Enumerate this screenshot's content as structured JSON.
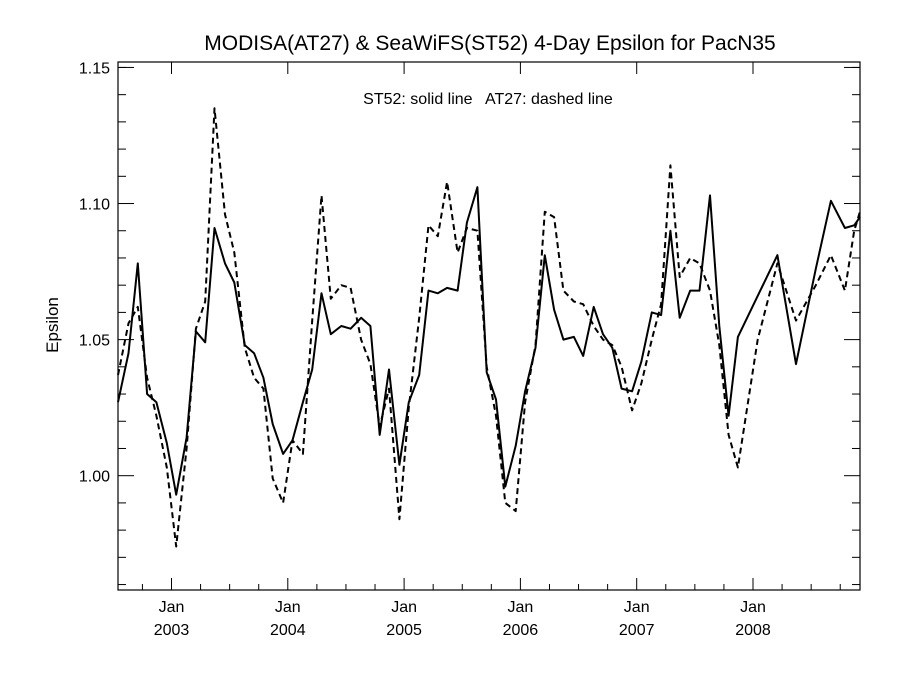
{
  "chart_data": {
    "type": "line",
    "title": "MODISA(AT27) & SeaWiFS(ST52) 4-Day Epsilon for PacN35",
    "ylabel": "Epsilon",
    "xlabel": "",
    "annotation": "ST52: solid line   AT27: dashed line",
    "ylim": [
      0.958,
      1.152
    ],
    "xlim": [
      2002.54,
      2008.92
    ],
    "y_ticks": [
      1.0,
      1.05,
      1.1,
      1.15
    ],
    "y_tick_labels": [
      "1.00",
      "1.05",
      "1.10",
      "1.15"
    ],
    "x_ticks": [
      {
        "x": 2003.0,
        "month": "Jan",
        "year": "2003"
      },
      {
        "x": 2004.0,
        "month": "Jan",
        "year": "2004"
      },
      {
        "x": 2005.0,
        "month": "Jan",
        "year": "2005"
      },
      {
        "x": 2006.0,
        "month": "Jan",
        "year": "2006"
      },
      {
        "x": 2007.0,
        "month": "Jan",
        "year": "2007"
      },
      {
        "x": 2008.0,
        "month": "Jan",
        "year": "2008"
      }
    ],
    "grid": false,
    "series": [
      {
        "name": "ST52",
        "style": "solid",
        "color": "#000000",
        "points": [
          [
            2002.54,
            1.027
          ],
          [
            2002.63,
            1.045
          ],
          [
            2002.71,
            1.078
          ],
          [
            2002.79,
            1.03
          ],
          [
            2002.87,
            1.027
          ],
          [
            2002.96,
            1.012
          ],
          [
            2003.04,
            0.993
          ],
          [
            2003.13,
            1.014
          ],
          [
            2003.21,
            1.053
          ],
          [
            2003.29,
            1.049
          ],
          [
            2003.37,
            1.091
          ],
          [
            2003.46,
            1.078
          ],
          [
            2003.54,
            1.071
          ],
          [
            2003.63,
            1.048
          ],
          [
            2003.71,
            1.045
          ],
          [
            2003.79,
            1.036
          ],
          [
            2003.87,
            1.019
          ],
          [
            2003.96,
            1.008
          ],
          [
            2004.04,
            1.013
          ],
          [
            2004.13,
            1.027
          ],
          [
            2004.21,
            1.039
          ],
          [
            2004.29,
            1.067
          ],
          [
            2004.37,
            1.052
          ],
          [
            2004.46,
            1.055
          ],
          [
            2004.54,
            1.054
          ],
          [
            2004.63,
            1.058
          ],
          [
            2004.71,
            1.055
          ],
          [
            2004.79,
            1.015
          ],
          [
            2004.87,
            1.039
          ],
          [
            2004.96,
            1.004
          ],
          [
            2005.04,
            1.027
          ],
          [
            2005.13,
            1.037
          ],
          [
            2005.21,
            1.068
          ],
          [
            2005.29,
            1.067
          ],
          [
            2005.37,
            1.069
          ],
          [
            2005.46,
            1.068
          ],
          [
            2005.54,
            1.093
          ],
          [
            2005.63,
            1.106
          ],
          [
            2005.71,
            1.038
          ],
          [
            2005.79,
            1.028
          ],
          [
            2005.87,
            0.996
          ],
          [
            2005.96,
            1.011
          ],
          [
            2006.04,
            1.031
          ],
          [
            2006.13,
            1.047
          ],
          [
            2006.21,
            1.081
          ],
          [
            2006.29,
            1.061
          ],
          [
            2006.37,
            1.05
          ],
          [
            2006.46,
            1.051
          ],
          [
            2006.54,
            1.044
          ],
          [
            2006.63,
            1.062
          ],
          [
            2006.71,
            1.052
          ],
          [
            2006.79,
            1.047
          ],
          [
            2006.87,
            1.032
          ],
          [
            2006.96,
            1.031
          ],
          [
            2007.04,
            1.042
          ],
          [
            2007.13,
            1.06
          ],
          [
            2007.21,
            1.059
          ],
          [
            2007.29,
            1.09
          ],
          [
            2007.37,
            1.058
          ],
          [
            2007.46,
            1.068
          ],
          [
            2007.54,
            1.068
          ],
          [
            2007.63,
            1.103
          ],
          [
            2007.71,
            1.055
          ],
          [
            2007.79,
            1.022
          ],
          [
            2007.87,
            1.051
          ],
          [
            2008.21,
            1.081
          ],
          [
            2008.37,
            1.041
          ],
          [
            2008.54,
            1.076
          ],
          [
            2008.67,
            1.101
          ],
          [
            2008.79,
            1.091
          ],
          [
            2008.87,
            1.092
          ],
          [
            2008.92,
            1.095
          ]
        ]
      },
      {
        "name": "AT27",
        "style": "dashed",
        "color": "#000000",
        "points": [
          [
            2002.54,
            1.037
          ],
          [
            2002.63,
            1.056
          ],
          [
            2002.71,
            1.062
          ],
          [
            2002.79,
            1.036
          ],
          [
            2002.87,
            1.022
          ],
          [
            2002.96,
            1.003
          ],
          [
            2003.04,
            0.974
          ],
          [
            2003.13,
            1.01
          ],
          [
            2003.21,
            1.054
          ],
          [
            2003.29,
            1.064
          ],
          [
            2003.37,
            1.135
          ],
          [
            2003.46,
            1.096
          ],
          [
            2003.54,
            1.082
          ],
          [
            2003.63,
            1.047
          ],
          [
            2003.71,
            1.036
          ],
          [
            2003.79,
            1.032
          ],
          [
            2003.87,
            0.999
          ],
          [
            2003.96,
            0.99
          ],
          [
            2004.04,
            1.013
          ],
          [
            2004.13,
            1.008
          ],
          [
            2004.21,
            1.057
          ],
          [
            2004.29,
            1.103
          ],
          [
            2004.37,
            1.065
          ],
          [
            2004.46,
            1.07
          ],
          [
            2004.54,
            1.069
          ],
          [
            2004.63,
            1.05
          ],
          [
            2004.71,
            1.041
          ],
          [
            2004.79,
            1.018
          ],
          [
            2004.87,
            1.032
          ],
          [
            2004.96,
            0.984
          ],
          [
            2005.04,
            1.025
          ],
          [
            2005.13,
            1.058
          ],
          [
            2005.21,
            1.092
          ],
          [
            2005.29,
            1.088
          ],
          [
            2005.37,
            1.108
          ],
          [
            2005.46,
            1.082
          ],
          [
            2005.54,
            1.091
          ],
          [
            2005.63,
            1.09
          ],
          [
            2005.71,
            1.04
          ],
          [
            2005.79,
            1.022
          ],
          [
            2005.87,
            0.99
          ],
          [
            2005.96,
            0.987
          ],
          [
            2006.04,
            1.027
          ],
          [
            2006.13,
            1.048
          ],
          [
            2006.21,
            1.097
          ],
          [
            2006.29,
            1.095
          ],
          [
            2006.37,
            1.068
          ],
          [
            2006.46,
            1.064
          ],
          [
            2006.54,
            1.063
          ],
          [
            2006.63,
            1.055
          ],
          [
            2006.71,
            1.05
          ],
          [
            2006.79,
            1.048
          ],
          [
            2006.87,
            1.04
          ],
          [
            2006.96,
            1.024
          ],
          [
            2007.04,
            1.034
          ],
          [
            2007.13,
            1.05
          ],
          [
            2007.21,
            1.063
          ],
          [
            2007.29,
            1.114
          ],
          [
            2007.37,
            1.073
          ],
          [
            2007.46,
            1.08
          ],
          [
            2007.54,
            1.078
          ],
          [
            2007.63,
            1.068
          ],
          [
            2007.71,
            1.048
          ],
          [
            2007.79,
            1.015
          ],
          [
            2007.87,
            1.003
          ],
          [
            2008.04,
            1.05
          ],
          [
            2008.21,
            1.078
          ],
          [
            2008.37,
            1.057
          ],
          [
            2008.54,
            1.07
          ],
          [
            2008.67,
            1.081
          ],
          [
            2008.79,
            1.068
          ],
          [
            2008.87,
            1.09
          ],
          [
            2008.92,
            1.097
          ]
        ]
      }
    ]
  }
}
